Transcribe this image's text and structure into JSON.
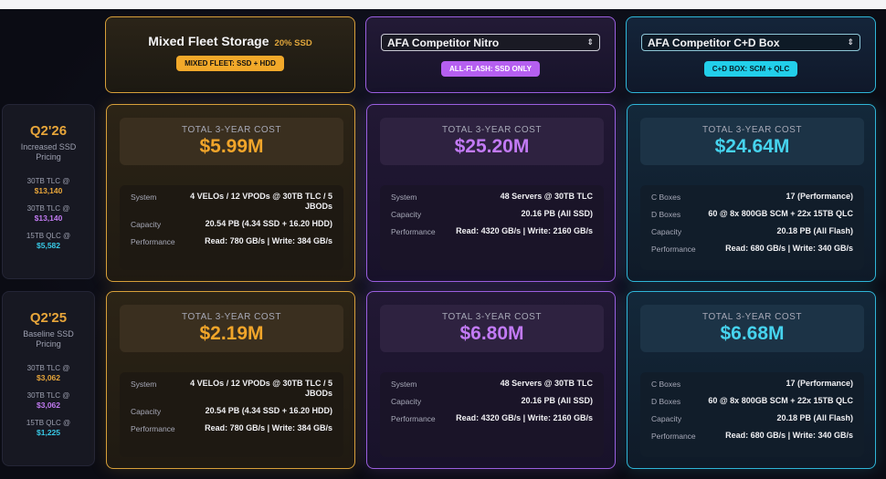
{
  "vendors": [
    {
      "name": "Mixed Fleet Storage",
      "tag": "20% SSD",
      "badge": "MIXED FLEET: SSD + HDD",
      "color": "#f1a52a"
    },
    {
      "name": "AFA Competitor Nitro",
      "badge": "ALL-FLASH: SSD ONLY",
      "color": "#b55ff0"
    },
    {
      "name": "AFA Competitor C+D Box",
      "badge": "C+D BOX: SCM + QLC",
      "color": "#22cfea"
    }
  ],
  "periods": [
    {
      "title": "Q2'26",
      "subtitle": [
        "Increased SSD",
        "Pricing"
      ],
      "prices": [
        {
          "label": "30TB TLC @",
          "value": "$13,140"
        },
        {
          "label": "30TB TLC @",
          "value": "$13,140"
        },
        {
          "label": "15TB QLC @",
          "value": "$5,582"
        }
      ]
    },
    {
      "title": "Q2'25",
      "subtitle": [
        "Baseline SSD",
        "Pricing"
      ],
      "prices": [
        {
          "label": "30TB TLC @",
          "value": "$3,062"
        },
        {
          "label": "30TB TLC @",
          "value": "$3,062"
        },
        {
          "label": "15TB QLC @",
          "value": "$1,225"
        }
      ]
    }
  ],
  "cost_label": "TOTAL 3-YEAR COST",
  "cards": {
    "q226": [
      {
        "cost": "$5.99M",
        "specs": [
          {
            "k": "System",
            "v": "4 VELOs / 12 VPODs @ 30TB TLC / 5 JBODs"
          },
          {
            "k": "Capacity",
            "v": "20.54 PB (4.34 SSD + 16.20 HDD)"
          },
          {
            "k": "Performance",
            "v": "Read: 780 GB/s | Write: 384 GB/s"
          }
        ]
      },
      {
        "cost": "$25.20M",
        "specs": [
          {
            "k": "System",
            "v": "48 Servers @ 30TB TLC"
          },
          {
            "k": "Capacity",
            "v": "20.16 PB (All SSD)"
          },
          {
            "k": "Performance",
            "v": "Read: 4320 GB/s | Write: 2160 GB/s"
          }
        ]
      },
      {
        "cost": "$24.64M",
        "specs": [
          {
            "k": "C Boxes",
            "v": "17 (Performance)"
          },
          {
            "k": "D Boxes",
            "v": "60 @ 8x 800GB SCM + 22x 15TB QLC"
          },
          {
            "k": "Capacity",
            "v": "20.18 PB (All Flash)"
          },
          {
            "k": "Performance",
            "v": "Read: 680 GB/s | Write: 340 GB/s"
          }
        ]
      }
    ],
    "q225": [
      {
        "cost": "$2.19M",
        "specs": [
          {
            "k": "System",
            "v": "4 VELOs / 12 VPODs @ 30TB TLC / 5 JBODs"
          },
          {
            "k": "Capacity",
            "v": "20.54 PB (4.34 SSD + 16.20 HDD)"
          },
          {
            "k": "Performance",
            "v": "Read: 780 GB/s | Write: 384 GB/s"
          }
        ]
      },
      {
        "cost": "$6.80M",
        "specs": [
          {
            "k": "System",
            "v": "48 Servers @ 30TB TLC"
          },
          {
            "k": "Capacity",
            "v": "20.16 PB (All SSD)"
          },
          {
            "k": "Performance",
            "v": "Read: 4320 GB/s | Write: 2160 GB/s"
          }
        ]
      },
      {
        "cost": "$6.68M",
        "specs": [
          {
            "k": "C Boxes",
            "v": "17 (Performance)"
          },
          {
            "k": "D Boxes",
            "v": "60 @ 8x 800GB SCM + 22x 15TB QLC"
          },
          {
            "k": "Capacity",
            "v": "20.18 PB (All Flash)"
          },
          {
            "k": "Performance",
            "v": "Read: 680 GB/s | Write: 340 GB/s"
          }
        ]
      }
    ]
  }
}
